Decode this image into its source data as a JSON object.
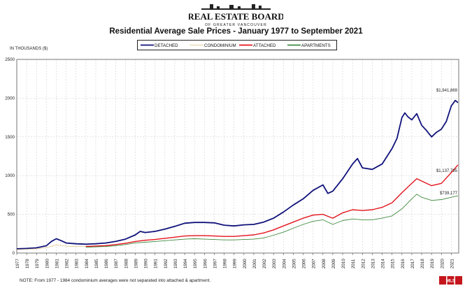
{
  "header": {
    "org_name": "REAL ESTATE BOARD",
    "org_subtitle": "OF GREATER VANCOUVER",
    "title": "Residential Average Sale Prices  -  January 1977 to September 2021"
  },
  "footer": {
    "note": "NOTE:  From 1977 - 1984 condominium averages were not separated into attached & apartment.",
    "logo_text": "MLS"
  },
  "colors": {
    "detached": "#10127a",
    "condominium": "#c89a3a",
    "attached": "#e3141b",
    "apartments": "#3f8a3f"
  },
  "chart_data": {
    "type": "line",
    "title": "Residential Average Sale Prices  -  January 1977 to September 2021",
    "ylabel": "IN THOUSANDS ($)",
    "xlabel": "",
    "ylim": [
      0,
      2500
    ],
    "yticks": [
      "0",
      "500",
      "1000",
      "1500",
      "2000",
      "2500"
    ],
    "xlim": [
      1977,
      2021.75
    ],
    "categories": [
      "1977",
      "1978",
      "1979",
      "1980",
      "1981",
      "1982",
      "1983",
      "1984",
      "1985",
      "1986",
      "1987",
      "1988",
      "1989",
      "1990",
      "1991",
      "1992",
      "1993",
      "1994",
      "1995",
      "1996",
      "1997",
      "1998",
      "1999",
      "2000",
      "2001",
      "2002",
      "2003",
      "2004",
      "2005",
      "2006",
      "2007",
      "2008",
      "2009",
      "2010",
      "2011",
      "2012",
      "2013",
      "2014",
      "2015",
      "2016",
      "2017",
      "2018",
      "2019",
      "2020",
      "2021"
    ],
    "grid": true,
    "legend_position": "top-center",
    "series": [
      {
        "name": "DETACHED",
        "color": "#10127a",
        "style": "solid",
        "x": [
          1977,
          1978,
          1979,
          1980,
          1980.5,
          1981,
          1981.5,
          1982,
          1983,
          1984,
          1985,
          1986,
          1987,
          1988,
          1989,
          1989.5,
          1990,
          1991,
          1992,
          1993,
          1994,
          1995,
          1996,
          1997,
          1998,
          1999,
          2000,
          2001,
          2002,
          2003,
          2004,
          2005,
          2006,
          2007,
          2008,
          2008.5,
          2009,
          2010,
          2011,
          2011.5,
          2012,
          2013,
          2014,
          2015,
          2015.5,
          2016,
          2016.3,
          2016.6,
          2017,
          2017.5,
          2018,
          2018.5,
          2019,
          2019.5,
          2020,
          2020.5,
          2021,
          2021.4,
          2021.67
        ],
        "y": [
          55,
          60,
          68,
          95,
          150,
          185,
          160,
          130,
          120,
          115,
          120,
          130,
          150,
          180,
          235,
          280,
          265,
          280,
          310,
          345,
          385,
          395,
          395,
          390,
          360,
          350,
          365,
          370,
          400,
          450,
          530,
          620,
          700,
          810,
          880,
          770,
          800,
          960,
          1150,
          1220,
          1100,
          1080,
          1150,
          1350,
          1480,
          1750,
          1810,
          1760,
          1720,
          1800,
          1650,
          1580,
          1500,
          1560,
          1600,
          1700,
          1900,
          1970,
          1942
        ]
      },
      {
        "name": "CONDOMINIUM",
        "color": "#c89a3a",
        "style": "dotted",
        "x": [
          1977,
          1978,
          1979,
          1980,
          1981,
          1982,
          1983,
          1984,
          1985
        ],
        "y": [
          45,
          50,
          55,
          70,
          105,
          90,
          85,
          85,
          90
        ]
      },
      {
        "name": "ATTACHED",
        "color": "#e3141b",
        "style": "solid",
        "x": [
          1984,
          1985,
          1986,
          1987,
          1988,
          1989,
          1990,
          1991,
          1992,
          1993,
          1994,
          1995,
          1996,
          1997,
          1998,
          1999,
          2000,
          2001,
          2002,
          2003,
          2004,
          2005,
          2006,
          2007,
          2008,
          2009,
          2010,
          2011,
          2012,
          2013,
          2014,
          2015,
          2016,
          2017,
          2017.5,
          2018,
          2019,
          2020,
          2021,
          2021.67
        ],
        "y": [
          85,
          90,
          95,
          110,
          125,
          150,
          165,
          175,
          190,
          205,
          220,
          225,
          225,
          220,
          215,
          215,
          225,
          235,
          260,
          300,
          350,
          400,
          450,
          490,
          500,
          450,
          520,
          560,
          550,
          560,
          590,
          650,
          780,
          900,
          960,
          930,
          870,
          900,
          1040,
          1138
        ]
      },
      {
        "name": "APARTMENTS",
        "color": "#3f8a3f",
        "style": "solid",
        "x": [
          1984,
          1985,
          1986,
          1987,
          1988,
          1989,
          1990,
          1991,
          1992,
          1993,
          1994,
          1995,
          1996,
          1997,
          1998,
          1999,
          2000,
          2001,
          2002,
          2003,
          2004,
          2005,
          2006,
          2007,
          2008,
          2009,
          2010,
          2011,
          2012,
          2013,
          2014,
          2015,
          2016,
          2017,
          2017.5,
          2018,
          2019,
          2020,
          2021,
          2021.67
        ],
        "y": [
          75,
          80,
          85,
          95,
          110,
          130,
          140,
          150,
          160,
          170,
          180,
          185,
          180,
          175,
          170,
          170,
          175,
          180,
          195,
          230,
          270,
          320,
          370,
          410,
          430,
          370,
          420,
          440,
          430,
          430,
          450,
          480,
          570,
          700,
          760,
          720,
          680,
          690,
          720,
          739
        ]
      }
    ],
    "annotations": [
      "$1,941,869",
      "$1,137,795",
      "$739,177"
    ]
  }
}
